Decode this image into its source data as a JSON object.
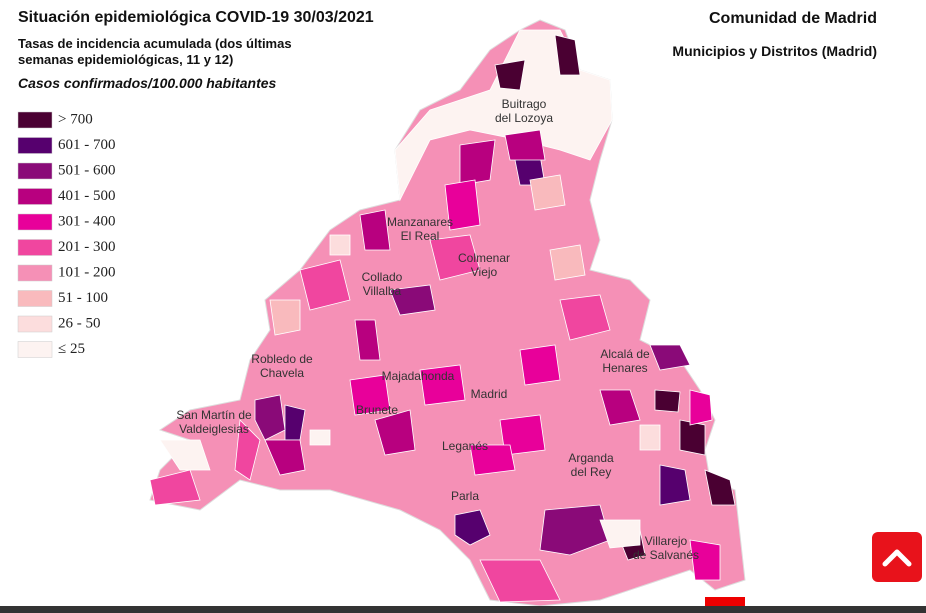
{
  "header": {
    "title": "Situación epidemiológica COVID-19  30/03/2021",
    "region": "Comunidad de Madrid",
    "subregion": "Municipios y Distritos (Madrid)",
    "subtitle_lines": [
      "Tasas de incidencia acumulada (dos últimas",
      "semanas epidemiológicas, 11 y 12)"
    ],
    "unit": "Casos confirmados/100.000 habitantes"
  },
  "legend": [
    {
      "label": "> 700",
      "color": "#4a0032"
    },
    {
      "label": "601 - 700",
      "color": "#56006e"
    },
    {
      "label": "501 - 600",
      "color": "#8a0a78"
    },
    {
      "label": "401 - 500",
      "color": "#b8007f"
    },
    {
      "label": "301 - 400",
      "color": "#e8009a"
    },
    {
      "label": "201 - 300",
      "color": "#f0469f"
    },
    {
      "label": "101 - 200",
      "color": "#f590b6"
    },
    {
      "label": "51 - 100",
      "color": "#f9babd"
    },
    {
      "label": "26 - 50",
      "color": "#fcdddd"
    },
    {
      "label": "≤ 25",
      "color": "#fdf3f1"
    }
  ],
  "places": [
    {
      "lines": [
        "Buitrago",
        "del Lozoya"
      ]
    },
    {
      "lines": [
        "Manzanares",
        "El Real"
      ]
    },
    {
      "lines": [
        "Colmenar",
        "Viejo"
      ]
    },
    {
      "lines": [
        "Collado",
        "Villalba"
      ]
    },
    {
      "lines": [
        "Robledo de",
        "Chavela"
      ]
    },
    {
      "lines": [
        "Alcalá de",
        "Henares"
      ]
    },
    {
      "lines": [
        "San Martín de",
        "Valdeiglesias"
      ]
    },
    {
      "lines": [
        "Majadahonda"
      ]
    },
    {
      "lines": [
        "Madrid"
      ]
    },
    {
      "lines": [
        "Brunete"
      ]
    },
    {
      "lines": [
        "Leganés"
      ]
    },
    {
      "lines": [
        "Arganda",
        "del Rey"
      ]
    },
    {
      "lines": [
        "Parla"
      ]
    },
    {
      "lines": [
        "Villarejo",
        "de Salvanés"
      ]
    }
  ]
}
